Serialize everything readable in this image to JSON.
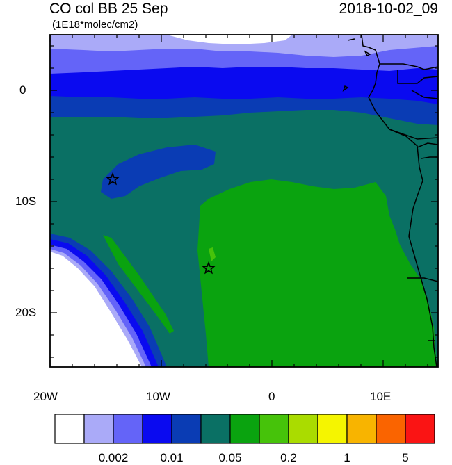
{
  "header": {
    "title": "CO col BB 25 Sep",
    "datetime": "2018-10-02_09",
    "units": "(1E18*molec/cm2)"
  },
  "axes": {
    "x_ticks": [
      "20W",
      "10W",
      "0",
      "10E"
    ],
    "y_ticks": [
      "0",
      "10S",
      "20S"
    ]
  },
  "colorbar": {
    "colors": [
      "#ffffff",
      "#aaaaf8",
      "#6464f8",
      "#0a0af0",
      "#0a3cb4",
      "#0a7064",
      "#0aa30f",
      "#46c30a",
      "#aadc00",
      "#f5f500",
      "#f8b400",
      "#fa6400",
      "#fa1414"
    ],
    "labels": [
      "0.002",
      "0.01",
      "0.05",
      "0.2",
      "1",
      "5"
    ]
  },
  "map": {
    "region": "Southeast Atlantic / West Africa",
    "markers": [
      {
        "name": "star-marker-north",
        "lon": -14.4,
        "lat": -8.0
      },
      {
        "name": "star-marker-south",
        "lon": -5.7,
        "lat": -16.0
      }
    ]
  }
}
